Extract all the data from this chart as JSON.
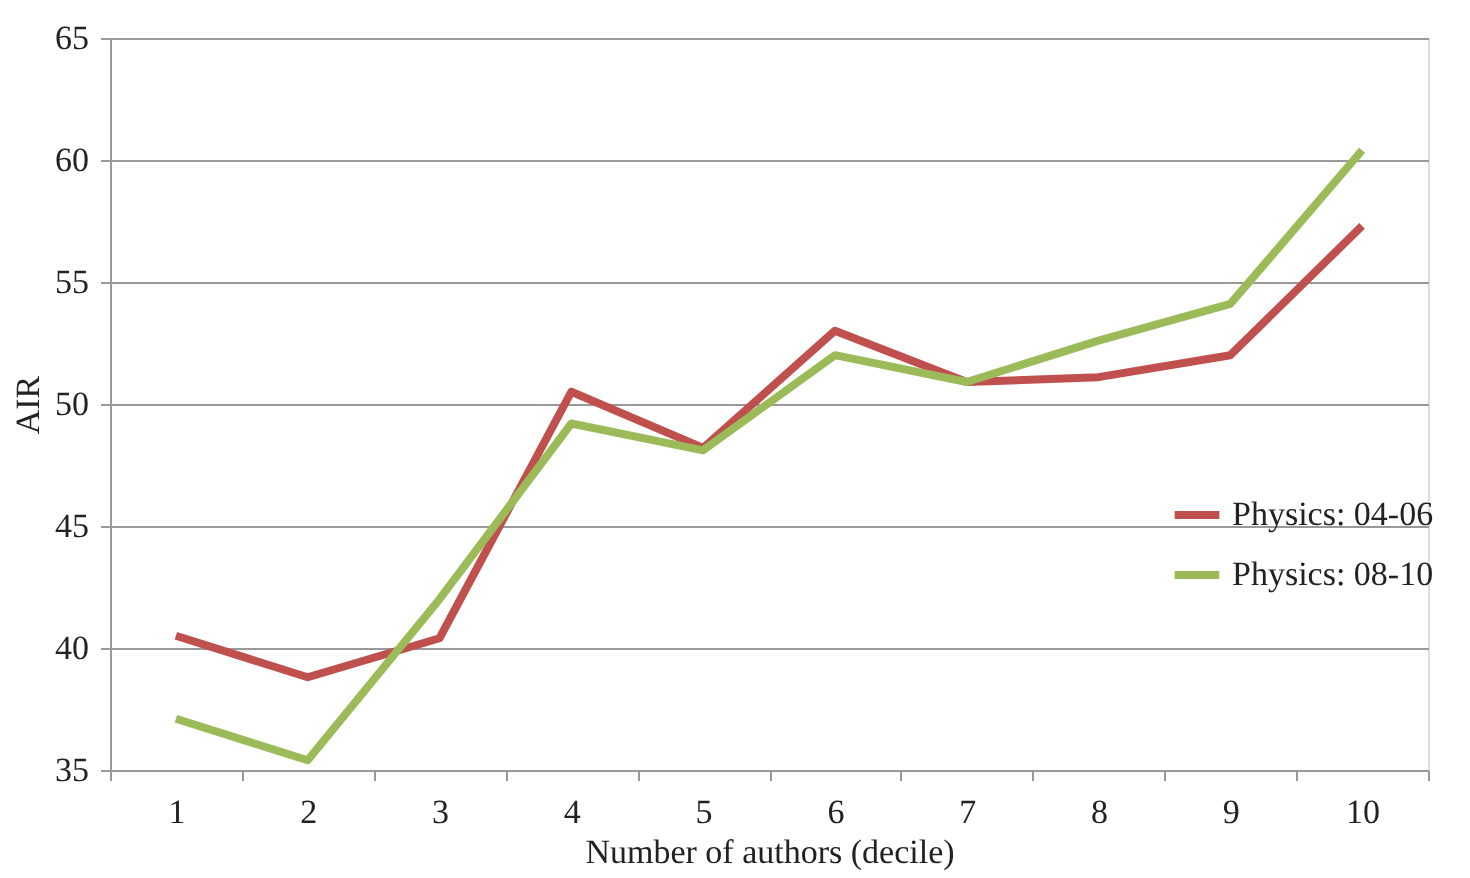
{
  "chart_data": {
    "type": "line",
    "xlabel": "Number of authors (decile)",
    "ylabel": "AIR",
    "categories": [
      "1",
      "2",
      "3",
      "4",
      "5",
      "6",
      "7",
      "8",
      "9",
      "10"
    ],
    "series": [
      {
        "name": "Physics: 04-06",
        "color": "#c0504d",
        "values": [
          40.5,
          38.8,
          40.4,
          50.5,
          48.2,
          53.0,
          50.9,
          51.1,
          52.0,
          57.3
        ]
      },
      {
        "name": "Physics: 08-10",
        "color": "#9bbb59",
        "values": [
          37.1,
          35.4,
          42.0,
          49.2,
          48.1,
          52.0,
          50.9,
          52.6,
          54.1,
          60.4
        ]
      }
    ],
    "ylim": [
      35,
      65
    ],
    "yticks": [
      35,
      40,
      45,
      50,
      55,
      60,
      65
    ],
    "grid": "y",
    "legend": "right",
    "marker": "none",
    "line_style": "solid"
  }
}
